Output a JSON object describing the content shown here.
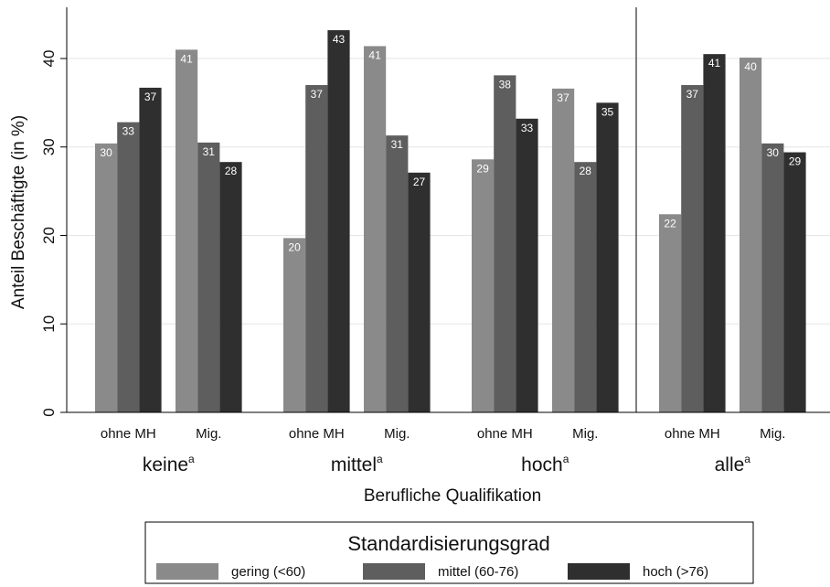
{
  "chart_data": {
    "type": "bar",
    "ylabel": "Anteil Beschäftigte (in %)",
    "xlabel": "Berufliche Qualifikation",
    "ylim": [
      0,
      45
    ],
    "yticks": [
      0,
      10,
      20,
      30,
      40
    ],
    "grid": true,
    "groups": [
      {
        "label": "keine",
        "sup": "a",
        "subgroups": [
          {
            "label": "ohne MH",
            "values": [
              30,
              33,
              37
            ]
          },
          {
            "label": "Mig.",
            "values": [
              41,
              31,
              28
            ]
          }
        ]
      },
      {
        "label": "mittel",
        "sup": "a",
        "subgroups": [
          {
            "label": "ohne MH",
            "values": [
              20,
              37,
              43
            ]
          },
          {
            "label": "Mig.",
            "values": [
              41,
              31,
              27
            ]
          }
        ]
      },
      {
        "label": "hoch",
        "sup": "a",
        "subgroups": [
          {
            "label": "ohne MH",
            "values": [
              29,
              38,
              33
            ]
          },
          {
            "label": "Mig.",
            "values": [
              37,
              28,
              35
            ]
          }
        ]
      },
      {
        "label": "alle",
        "sup": "a",
        "subgroups": [
          {
            "label": "ohne MH",
            "values": [
              22,
              37,
              41
            ]
          },
          {
            "label": "Mig.",
            "values": [
              40,
              30,
              29
            ]
          }
        ]
      }
    ],
    "precise_values": [
      [
        [
          30.4,
          32.8,
          36.7
        ],
        [
          41.0,
          30.5,
          28.3
        ]
      ],
      [
        [
          19.7,
          37.0,
          43.2
        ],
        [
          41.4,
          31.3,
          27.1
        ]
      ],
      [
        [
          28.6,
          38.1,
          33.2
        ],
        [
          36.6,
          28.3,
          35.0
        ]
      ],
      [
        [
          22.4,
          37.0,
          40.5
        ],
        [
          40.1,
          30.4,
          29.4
        ]
      ]
    ],
    "legend": {
      "title": "Standardisierungsgrad",
      "position": "bottom",
      "items": [
        {
          "label": "gering (<60)",
          "color": "#8a8a8a"
        },
        {
          "label": "mittel (60-76)",
          "color": "#5e5e5e"
        },
        {
          "label": "hoch (>76)",
          "color": "#2f2f2f"
        }
      ]
    },
    "colors": [
      "#8a8a8a",
      "#5e5e5e",
      "#2f2f2f"
    ]
  }
}
